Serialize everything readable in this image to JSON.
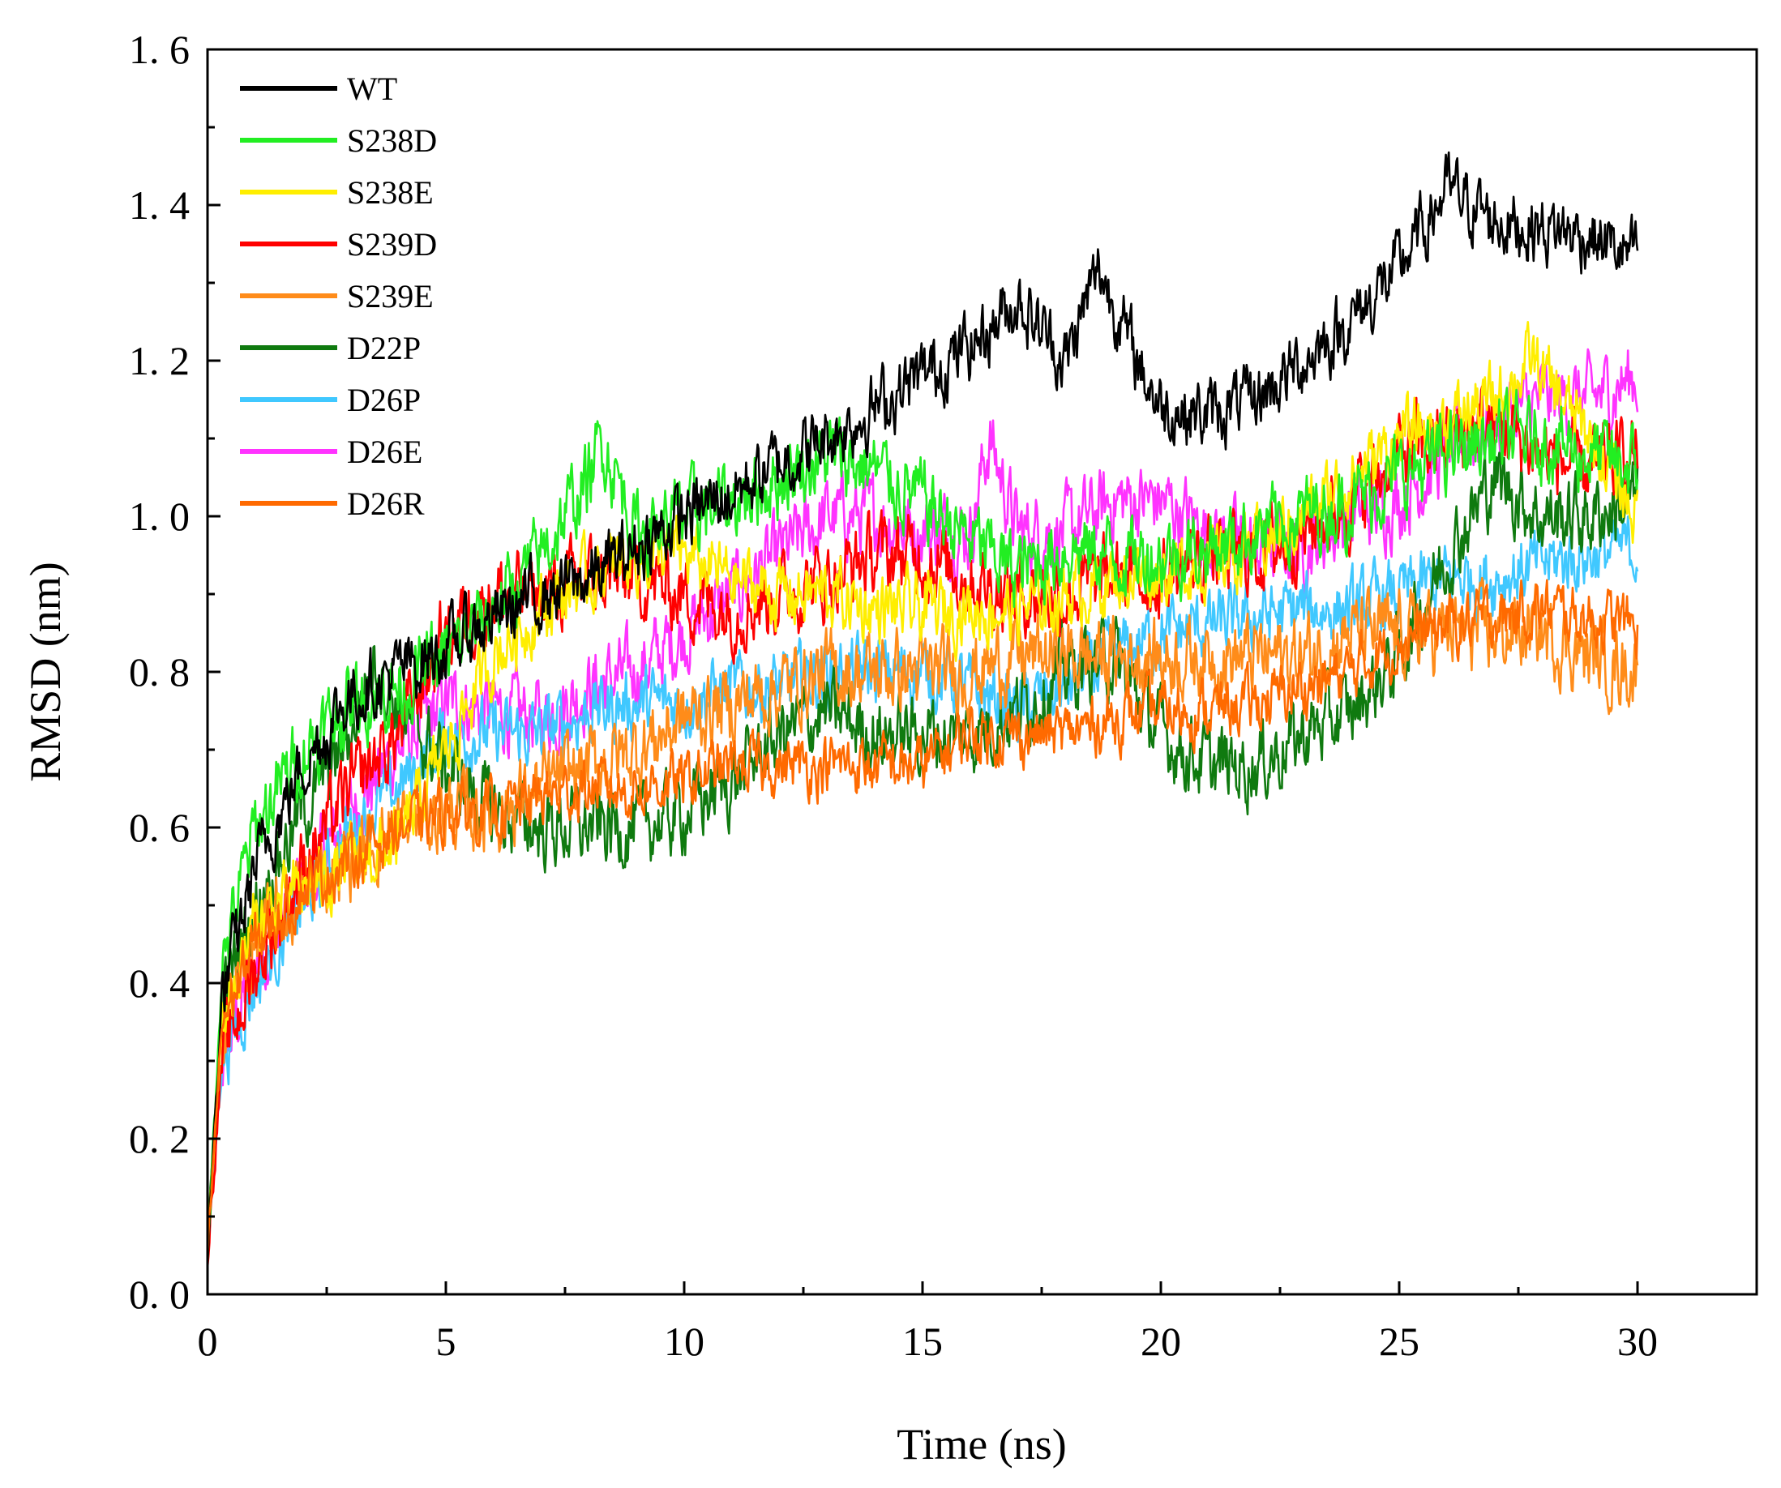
{
  "chart_data": {
    "type": "line",
    "title": "",
    "xlabel": "Time (ns)",
    "ylabel": "RMSD (nm)",
    "xlim": [
      0,
      32.5
    ],
    "ylim": [
      0,
      1.6
    ],
    "x_ticks": [
      0,
      5,
      10,
      15,
      20,
      25,
      30
    ],
    "x_tick_labels": [
      "0",
      "5",
      "10",
      "15",
      "20",
      "25",
      "30"
    ],
    "y_ticks": [
      0,
      0.2,
      0.4,
      0.6,
      0.8,
      1.0,
      1.2,
      1.4,
      1.6
    ],
    "y_tick_labels": [
      "0. 0",
      "0. 2",
      "0. 4",
      "0. 6",
      "0. 8",
      "1. 0",
      "1. 2",
      "1. 4",
      "1. 6"
    ],
    "grid": false,
    "legend_position": "top-left",
    "series": [
      {
        "name": "WT",
        "color": "#000000",
        "noise": 0.035,
        "x": [
          0,
          0.3,
          1,
          2,
          3,
          4,
          5,
          6,
          7,
          8,
          9,
          10,
          11,
          12,
          13,
          14,
          15,
          16,
          17,
          18,
          18.7,
          19.5,
          20,
          21,
          22,
          23,
          24,
          25,
          26,
          27,
          28,
          29,
          30
        ],
        "y": [
          0.05,
          0.38,
          0.55,
          0.68,
          0.77,
          0.8,
          0.83,
          0.87,
          0.9,
          0.92,
          0.96,
          1.0,
          1.03,
          1.07,
          1.1,
          1.14,
          1.18,
          1.22,
          1.28,
          1.2,
          1.32,
          1.2,
          1.14,
          1.13,
          1.15,
          1.2,
          1.25,
          1.32,
          1.42,
          1.38,
          1.37,
          1.36,
          1.33
        ]
      },
      {
        "name": "S238D",
        "color": "#22ee22",
        "noise": 0.04,
        "x": [
          0,
          0.3,
          1,
          2,
          3,
          4,
          5,
          6,
          7,
          8,
          8.3,
          9,
          10,
          11,
          12,
          13,
          14,
          15,
          16,
          17,
          18,
          19,
          20,
          21,
          22,
          23,
          24,
          25,
          26,
          27,
          28,
          29,
          30
        ],
        "y": [
          0.05,
          0.42,
          0.6,
          0.7,
          0.76,
          0.78,
          0.82,
          0.88,
          0.95,
          1.05,
          1.1,
          0.98,
          1.0,
          1.02,
          1.05,
          1.08,
          1.06,
          1.02,
          0.97,
          0.93,
          0.96,
          0.95,
          0.95,
          0.96,
          0.98,
          1.0,
          1.02,
          1.05,
          1.08,
          1.1,
          1.1,
          1.08,
          1.06
        ]
      },
      {
        "name": "S238E",
        "color": "#ffee00",
        "noise": 0.035,
        "x": [
          0,
          0.3,
          1,
          2,
          3,
          4,
          5,
          6,
          7,
          8,
          9,
          10,
          11,
          12,
          13,
          14,
          15,
          16,
          17,
          18,
          19,
          20,
          21,
          22,
          23,
          24,
          25,
          26,
          27,
          27.8,
          29,
          30
        ],
        "y": [
          0.05,
          0.35,
          0.48,
          0.52,
          0.55,
          0.58,
          0.7,
          0.82,
          0.88,
          0.92,
          0.95,
          0.95,
          0.92,
          0.9,
          0.9,
          0.88,
          0.88,
          0.88,
          0.88,
          0.9,
          0.92,
          0.93,
          0.94,
          0.96,
          1.0,
          1.05,
          1.1,
          1.12,
          1.15,
          1.2,
          1.1,
          1.0
        ]
      },
      {
        "name": "S239D",
        "color": "#ff0000",
        "noise": 0.04,
        "x": [
          0,
          0.3,
          1,
          2,
          3,
          4,
          5,
          6,
          7,
          8,
          9,
          10,
          11,
          12,
          13,
          14,
          15,
          16,
          17,
          18,
          19,
          20,
          21,
          22,
          23,
          24,
          25,
          26,
          27,
          28,
          29,
          30
        ],
        "y": [
          0.05,
          0.3,
          0.42,
          0.55,
          0.65,
          0.72,
          0.85,
          0.9,
          0.9,
          0.92,
          0.92,
          0.9,
          0.88,
          0.9,
          0.92,
          0.95,
          0.95,
          0.92,
          0.9,
          0.9,
          0.92,
          0.92,
          0.95,
          0.95,
          0.98,
          1.02,
          1.08,
          1.1,
          1.12,
          1.08,
          1.06,
          1.08
        ]
      },
      {
        "name": "S239E",
        "color": "#ff8c1a",
        "noise": 0.04,
        "x": [
          0,
          0.3,
          1,
          2,
          3,
          4,
          5,
          6,
          7,
          8,
          9,
          10,
          11,
          12,
          13,
          14,
          15,
          16,
          17,
          18,
          19,
          20,
          21,
          22,
          23,
          24,
          25,
          26,
          27,
          28,
          29,
          30
        ],
        "y": [
          0.05,
          0.35,
          0.45,
          0.52,
          0.56,
          0.6,
          0.62,
          0.62,
          0.65,
          0.68,
          0.7,
          0.74,
          0.76,
          0.78,
          0.8,
          0.8,
          0.8,
          0.8,
          0.82,
          0.82,
          0.82,
          0.82,
          0.82,
          0.82,
          0.82,
          0.85,
          0.85,
          0.85,
          0.85,
          0.85,
          0.82,
          0.8
        ]
      },
      {
        "name": "D22P",
        "color": "#0f7a0f",
        "noise": 0.04,
        "x": [
          0,
          0.3,
          1,
          2,
          3,
          3.5,
          4,
          5,
          6,
          7,
          8,
          9,
          10,
          11,
          12,
          13,
          14,
          15,
          16,
          17,
          18,
          19,
          20,
          21,
          22,
          23,
          24,
          25,
          26,
          27,
          28,
          29,
          30
        ],
        "y": [
          0.05,
          0.38,
          0.5,
          0.62,
          0.72,
          0.82,
          0.75,
          0.68,
          0.62,
          0.6,
          0.6,
          0.6,
          0.62,
          0.66,
          0.72,
          0.75,
          0.72,
          0.72,
          0.72,
          0.75,
          0.8,
          0.82,
          0.72,
          0.68,
          0.68,
          0.72,
          0.75,
          0.82,
          0.95,
          1.05,
          1.0,
          1.0,
          1.02
        ]
      },
      {
        "name": "D26P",
        "color": "#40c8ff",
        "noise": 0.035,
        "x": [
          0,
          0.3,
          1,
          2,
          3,
          4,
          5,
          6,
          7,
          8,
          9,
          10,
          11,
          12,
          13,
          14,
          15,
          16,
          17,
          18,
          19,
          20,
          21,
          22,
          23,
          24,
          25,
          26,
          27,
          28,
          29,
          30
        ],
        "y": [
          0.05,
          0.3,
          0.4,
          0.5,
          0.6,
          0.65,
          0.72,
          0.72,
          0.72,
          0.75,
          0.76,
          0.76,
          0.78,
          0.78,
          0.8,
          0.8,
          0.8,
          0.78,
          0.75,
          0.78,
          0.82,
          0.85,
          0.86,
          0.87,
          0.88,
          0.88,
          0.9,
          0.92,
          0.92,
          0.94,
          0.95,
          0.96
        ]
      },
      {
        "name": "D26E",
        "color": "#ff33ff",
        "noise": 0.04,
        "x": [
          0,
          0.3,
          1,
          2,
          3,
          4,
          5,
          6,
          7,
          8,
          9,
          10,
          11,
          12,
          13,
          14,
          15,
          16,
          16.4,
          17,
          18,
          19,
          20,
          21,
          22,
          23,
          24,
          25,
          26,
          27,
          28,
          29,
          30
        ],
        "y": [
          0.05,
          0.3,
          0.42,
          0.52,
          0.62,
          0.7,
          0.76,
          0.75,
          0.74,
          0.78,
          0.8,
          0.85,
          0.9,
          0.95,
          1.0,
          1.0,
          0.98,
          0.98,
          1.1,
          0.98,
          0.98,
          1.02,
          1.02,
          0.98,
          0.96,
          0.96,
          1.0,
          1.02,
          1.08,
          1.12,
          1.15,
          1.15,
          1.18
        ]
      },
      {
        "name": "D26R",
        "color": "#ff6a00",
        "noise": 0.03,
        "x": [
          0,
          0.3,
          1,
          2,
          3,
          4,
          5,
          6,
          7,
          8,
          9,
          10,
          11,
          12,
          13,
          14,
          15,
          16,
          17,
          18,
          19,
          20,
          21,
          22,
          23,
          24,
          25,
          26,
          27,
          28,
          29,
          30
        ],
        "y": [
          0.05,
          0.35,
          0.45,
          0.52,
          0.56,
          0.6,
          0.62,
          0.62,
          0.64,
          0.65,
          0.65,
          0.66,
          0.68,
          0.68,
          0.68,
          0.68,
          0.68,
          0.72,
          0.72,
          0.72,
          0.74,
          0.75,
          0.75,
          0.76,
          0.78,
          0.8,
          0.84,
          0.86,
          0.87,
          0.88,
          0.87,
          0.86
        ]
      }
    ]
  }
}
